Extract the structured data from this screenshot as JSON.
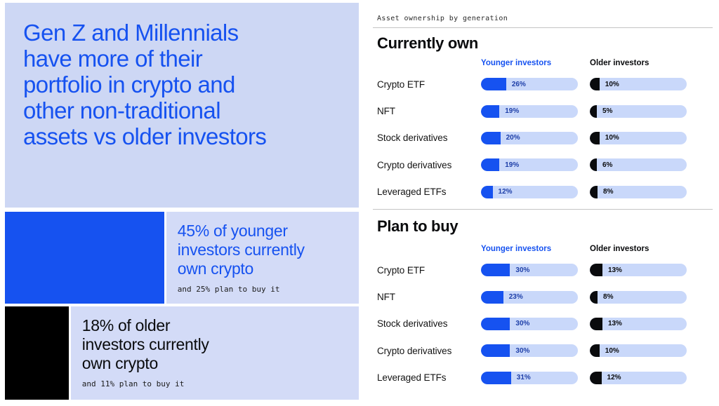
{
  "colors": {
    "accent_blue": "#1652F0",
    "lavender": "#CDD7F4",
    "lavender_light": "#D3DBF7",
    "bar_track": "#C9D8FA",
    "black": "#0A0B0D"
  },
  "left_panel": {
    "headline": "Gen Z and Millennials\nhave more of their\nportfolio in crypto and\nother non-traditional\nassets vs older investors",
    "callouts": [
      {
        "own_percent": 45,
        "stat_text": "45% of younger\ninvestors currently\nown crypto",
        "sub_text": "and 25% plan to buy it"
      },
      {
        "own_percent": 18,
        "stat_text": "18% of older\ninvestors currently\nown crypto",
        "sub_text": "and 11% plan to buy it"
      }
    ]
  },
  "right_panel": {
    "eyebrow": "Asset ownership by generation"
  },
  "chart_data": [
    {
      "type": "bar",
      "title": "Currently own",
      "unit": "%",
      "xlim": [
        0,
        100
      ],
      "categories": [
        "Crypto ETF",
        "NFT",
        "Stock derivatives",
        "Crypto derivatives",
        "Leveraged ETFs"
      ],
      "series": [
        {
          "name": "Younger investors",
          "values": [
            26,
            19,
            20,
            19,
            12
          ]
        },
        {
          "name": "Older investors",
          "values": [
            10,
            5,
            10,
            6,
            8
          ]
        }
      ]
    },
    {
      "type": "bar",
      "title": "Plan to buy",
      "unit": "%",
      "xlim": [
        0,
        100
      ],
      "categories": [
        "Crypto ETF",
        "NFT",
        "Stock derivatives",
        "Crypto derivatives",
        "Leveraged ETFs"
      ],
      "series": [
        {
          "name": "Younger investors",
          "values": [
            30,
            23,
            30,
            30,
            31
          ]
        },
        {
          "name": "Older investors",
          "values": [
            13,
            8,
            13,
            10,
            12
          ]
        }
      ]
    }
  ]
}
